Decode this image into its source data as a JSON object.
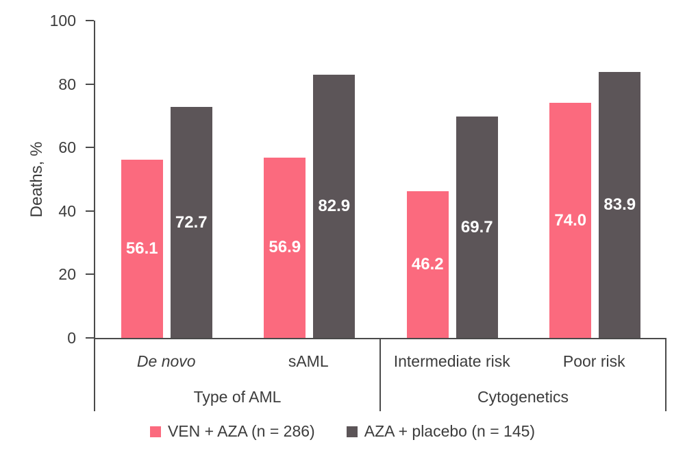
{
  "chart_data": {
    "type": "bar",
    "title": "",
    "ylabel": "Deaths, %",
    "ylim": [
      0,
      100
    ],
    "yticks": [
      0,
      20,
      40,
      60,
      80,
      100
    ],
    "grid": false,
    "legend_position": "bottom",
    "categories": [
      {
        "label": "De novo",
        "italic": true
      },
      {
        "label": "sAML",
        "italic": false
      },
      {
        "label": "Intermediate risk",
        "italic": false
      },
      {
        "label": "Poor risk",
        "italic": false
      }
    ],
    "sections": [
      {
        "label": "Type of AML",
        "span": 2
      },
      {
        "label": "Cytogenetics",
        "span": 2
      }
    ],
    "series": [
      {
        "name": "VEN + AZA (n = 286)",
        "color": "#FB6A7E",
        "values": [
          56.1,
          56.9,
          46.2,
          74.0
        ],
        "labels": [
          "56.1",
          "56.9",
          "46.2",
          "74.0"
        ]
      },
      {
        "name": "AZA + placebo (n = 145)",
        "color": "#5C5558",
        "values": [
          72.7,
          82.9,
          69.7,
          83.9
        ],
        "labels": [
          "72.7",
          "82.9",
          "69.7",
          "83.9"
        ]
      }
    ],
    "value_label_color": "#FFFFFF",
    "axis_color": "#4A4A4A",
    "text_color": "#3C3C3C"
  }
}
